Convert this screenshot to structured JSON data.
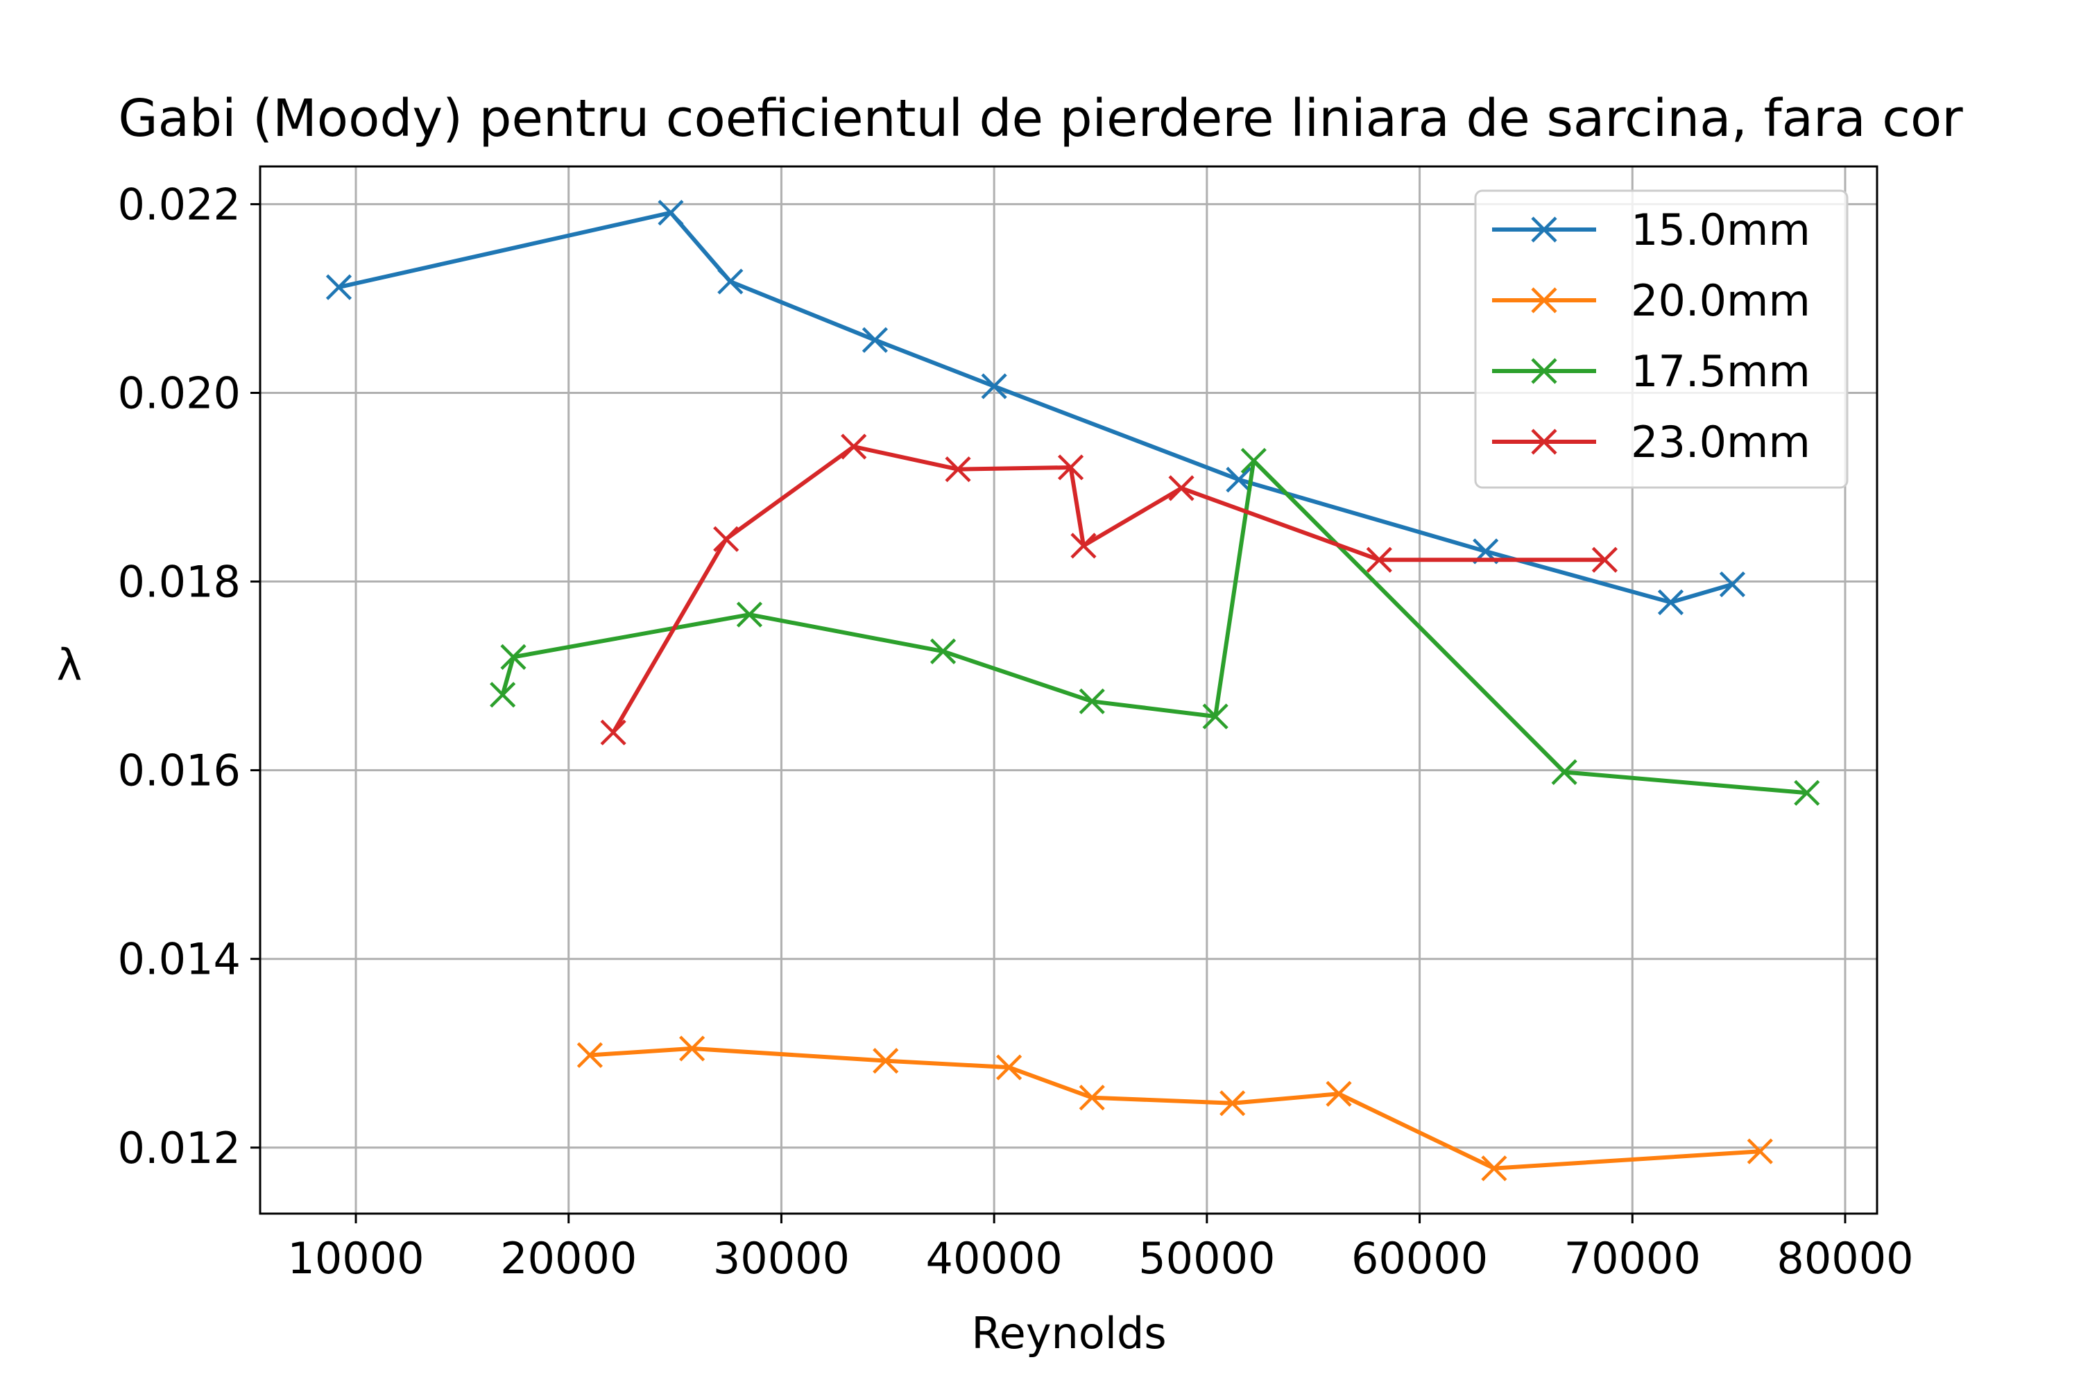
{
  "chart_data": {
    "type": "line",
    "title": "Gabi (Moody) pentru coeficientul de pierdere liniara de sarcina, fara cor",
    "xlabel": "Reynolds",
    "ylabel": "λ",
    "xlim": [
      5500,
      81500
    ],
    "ylim": [
      0.0113,
      0.0224
    ],
    "xticks": [
      10000,
      20000,
      30000,
      40000,
      50000,
      60000,
      70000,
      80000
    ],
    "xtick_labels": [
      "10000",
      "20000",
      "30000",
      "40000",
      "50000",
      "60000",
      "70000",
      "80000"
    ],
    "yticks": [
      0.012,
      0.014,
      0.016,
      0.018,
      0.02,
      0.022
    ],
    "ytick_labels": [
      "0.012",
      "0.014",
      "0.016",
      "0.018",
      "0.020",
      "0.022"
    ],
    "grid": true,
    "legend_position": "top-right",
    "marker": "x",
    "series": [
      {
        "name": "15.0mm",
        "color": "#1f77b4",
        "x": [
          9200,
          24800,
          27600,
          34400,
          40000,
          51500,
          63100,
          71800,
          74700
        ],
        "y": [
          0.02112,
          0.02191,
          0.02118,
          0.02056,
          0.02007,
          0.01908,
          0.01832,
          0.01778,
          0.01797
        ]
      },
      {
        "name": "20.0mm",
        "color": "#ff7f0e",
        "x": [
          21000,
          25800,
          34900,
          40700,
          44600,
          51200,
          56200,
          63500,
          76000
        ],
        "y": [
          0.01298,
          0.01305,
          0.01292,
          0.01285,
          0.01253,
          0.01247,
          0.01257,
          0.01178,
          0.01196
        ]
      },
      {
        "name": "17.5mm",
        "color": "#2ca02c",
        "x": [
          16900,
          17400,
          28500,
          37600,
          44600,
          50400,
          52200,
          66800,
          78200
        ],
        "y": [
          0.0168,
          0.0172,
          0.01765,
          0.01726,
          0.01673,
          0.01657,
          0.01928,
          0.01598,
          0.01576
        ]
      },
      {
        "name": "23.0mm",
        "color": "#d62728",
        "x": [
          22100,
          27400,
          33400,
          38300,
          43600,
          44200,
          48800,
          58100,
          68700
        ],
        "y": [
          0.0164,
          0.01845,
          0.01943,
          0.01919,
          0.01921,
          0.01838,
          0.01899,
          0.01823,
          0.01823
        ]
      }
    ]
  }
}
